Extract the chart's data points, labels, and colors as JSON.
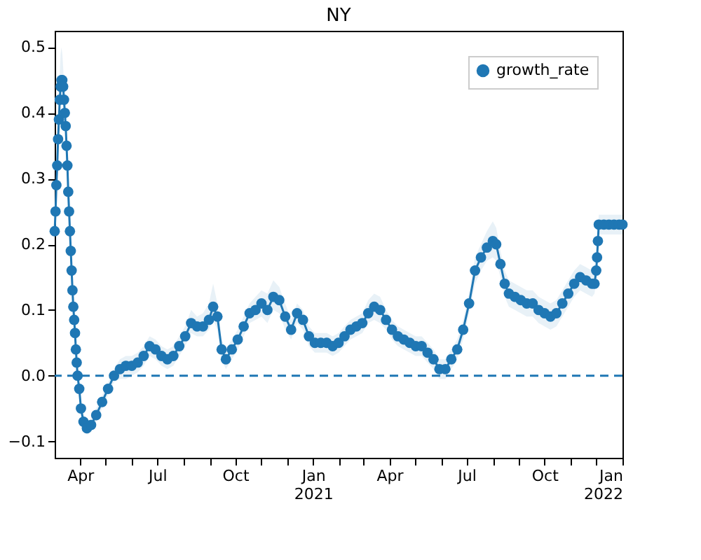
{
  "chart_data": {
    "type": "line",
    "title": "NY",
    "x": [
      "2020-03-02",
      "2020-03-03",
      "2020-03-04",
      "2020-03-05",
      "2020-03-06",
      "2020-03-07",
      "2020-03-08",
      "2020-03-09",
      "2020-03-10",
      "2020-03-11",
      "2020-03-12",
      "2020-03-13",
      "2020-03-14",
      "2020-03-15",
      "2020-03-16",
      "2020-03-17",
      "2020-03-18",
      "2020-03-19",
      "2020-03-20",
      "2020-03-21",
      "2020-03-22",
      "2020-03-23",
      "2020-03-24",
      "2020-03-25",
      "2020-03-26",
      "2020-03-27",
      "2020-03-28",
      "2020-03-29",
      "2020-03-31",
      "2020-04-02",
      "2020-04-05",
      "2020-04-09",
      "2020-04-14",
      "2020-04-20",
      "2020-04-27",
      "2020-05-04",
      "2020-05-11",
      "2020-05-18",
      "2020-05-25",
      "2020-06-01",
      "2020-06-08",
      "2020-06-15",
      "2020-06-22",
      "2020-06-29",
      "2020-07-06",
      "2020-07-13",
      "2020-07-20",
      "2020-07-27",
      "2020-08-03",
      "2020-08-10",
      "2020-08-17",
      "2020-08-24",
      "2020-08-31",
      "2020-09-05",
      "2020-09-10",
      "2020-09-15",
      "2020-09-20",
      "2020-09-27",
      "2020-10-04",
      "2020-10-11",
      "2020-10-18",
      "2020-10-25",
      "2020-11-01",
      "2020-11-08",
      "2020-11-15",
      "2020-11-22",
      "2020-11-29",
      "2020-12-06",
      "2020-12-13",
      "2020-12-20",
      "2020-12-27",
      "2021-01-03",
      "2021-01-10",
      "2021-01-17",
      "2021-01-24",
      "2021-01-31",
      "2021-02-07",
      "2021-02-14",
      "2021-02-21",
      "2021-02-28",
      "2021-03-07",
      "2021-03-14",
      "2021-03-21",
      "2021-03-28",
      "2021-04-04",
      "2021-04-11",
      "2021-04-18",
      "2021-04-25",
      "2021-05-02",
      "2021-05-09",
      "2021-05-16",
      "2021-05-23",
      "2021-05-30",
      "2021-06-06",
      "2021-06-13",
      "2021-06-20",
      "2021-06-27",
      "2021-07-04",
      "2021-07-11",
      "2021-07-18",
      "2021-07-25",
      "2021-08-01",
      "2021-08-05",
      "2021-08-10",
      "2021-08-15",
      "2021-08-20",
      "2021-08-27",
      "2021-09-03",
      "2021-09-10",
      "2021-09-17",
      "2021-09-24",
      "2021-10-01",
      "2021-10-08",
      "2021-10-15",
      "2021-10-22",
      "2021-10-29",
      "2021-11-05",
      "2021-11-12",
      "2021-11-19",
      "2021-11-26",
      "2021-11-29",
      "2021-12-01",
      "2021-12-02",
      "2021-12-03",
      "2021-12-04",
      "2021-12-10",
      "2021-12-16",
      "2021-12-22",
      "2021-12-28",
      "2022-01-01"
    ],
    "series": [
      {
        "name": "growth_rate",
        "color": "#1f77b4",
        "values": [
          0.22,
          0.25,
          0.29,
          0.32,
          0.36,
          0.39,
          0.42,
          0.44,
          0.45,
          0.45,
          0.44,
          0.42,
          0.4,
          0.38,
          0.35,
          0.32,
          0.28,
          0.25,
          0.22,
          0.19,
          0.16,
          0.13,
          0.105,
          0.085,
          0.065,
          0.04,
          0.02,
          0.0,
          -0.02,
          -0.05,
          -0.07,
          -0.08,
          -0.075,
          -0.06,
          -0.04,
          -0.02,
          0.0,
          0.01,
          0.015,
          0.015,
          0.02,
          0.03,
          0.045,
          0.04,
          0.03,
          0.025,
          0.03,
          0.045,
          0.06,
          0.08,
          0.075,
          0.075,
          0.085,
          0.105,
          0.09,
          0.04,
          0.025,
          0.04,
          0.055,
          0.075,
          0.095,
          0.1,
          0.11,
          0.1,
          0.12,
          0.115,
          0.09,
          0.07,
          0.095,
          0.085,
          0.06,
          0.05,
          0.05,
          0.05,
          0.045,
          0.05,
          0.06,
          0.07,
          0.075,
          0.08,
          0.095,
          0.105,
          0.1,
          0.085,
          0.07,
          0.06,
          0.055,
          0.05,
          0.045,
          0.045,
          0.035,
          0.025,
          0.01,
          0.01,
          0.025,
          0.04,
          0.07,
          0.11,
          0.16,
          0.18,
          0.195,
          0.205,
          0.2,
          0.17,
          0.14,
          0.125,
          0.12,
          0.115,
          0.11,
          0.11,
          0.1,
          0.095,
          0.09,
          0.095,
          0.11,
          0.125,
          0.14,
          0.15,
          0.145,
          0.14,
          0.14,
          0.16,
          0.18,
          0.205,
          0.23,
          0.23,
          0.23,
          0.23,
          0.23,
          0.23
        ],
        "lower": [
          0.2,
          0.23,
          0.27,
          0.3,
          0.34,
          0.37,
          0.4,
          0.42,
          0.43,
          0.43,
          0.42,
          0.4,
          0.38,
          0.36,
          0.33,
          0.3,
          0.26,
          0.23,
          0.2,
          0.17,
          0.14,
          0.11,
          0.09,
          0.07,
          0.05,
          0.03,
          0.01,
          -0.01,
          -0.03,
          -0.06,
          -0.08,
          -0.09,
          -0.085,
          -0.07,
          -0.05,
          -0.03,
          -0.01,
          -0.005,
          -0.005,
          0.0,
          0.005,
          0.015,
          0.03,
          0.025,
          0.015,
          0.01,
          0.015,
          0.03,
          0.045,
          0.065,
          0.06,
          0.06,
          0.07,
          0.085,
          0.07,
          0.025,
          0.01,
          0.025,
          0.04,
          0.06,
          0.08,
          0.085,
          0.09,
          0.08,
          0.1,
          0.095,
          0.07,
          0.055,
          0.08,
          0.07,
          0.045,
          0.035,
          0.035,
          0.035,
          0.03,
          0.035,
          0.045,
          0.055,
          0.06,
          0.065,
          0.08,
          0.085,
          0.08,
          0.07,
          0.055,
          0.045,
          0.04,
          0.035,
          0.03,
          0.03,
          0.02,
          0.01,
          -0.005,
          -0.005,
          0.01,
          0.025,
          0.055,
          0.095,
          0.14,
          0.16,
          0.175,
          0.18,
          0.175,
          0.15,
          0.12,
          0.105,
          0.1,
          0.095,
          0.09,
          0.09,
          0.08,
          0.075,
          0.07,
          0.075,
          0.09,
          0.105,
          0.12,
          0.13,
          0.125,
          0.12,
          0.125,
          0.145,
          0.165,
          0.19,
          0.215,
          0.215,
          0.215,
          0.215,
          0.215,
          0.215
        ],
        "upper": [
          0.24,
          0.27,
          0.31,
          0.35,
          0.39,
          0.43,
          0.46,
          0.49,
          0.5,
          0.49,
          0.47,
          0.44,
          0.42,
          0.4,
          0.37,
          0.34,
          0.3,
          0.27,
          0.24,
          0.21,
          0.18,
          0.15,
          0.12,
          0.1,
          0.08,
          0.05,
          0.03,
          0.01,
          -0.01,
          -0.04,
          -0.06,
          -0.07,
          -0.065,
          -0.05,
          -0.03,
          -0.01,
          0.01,
          0.025,
          0.03,
          0.03,
          0.035,
          0.045,
          0.06,
          0.055,
          0.045,
          0.04,
          0.045,
          0.06,
          0.075,
          0.1,
          0.09,
          0.095,
          0.11,
          0.14,
          0.11,
          0.055,
          0.04,
          0.055,
          0.07,
          0.09,
          0.11,
          0.12,
          0.13,
          0.125,
          0.145,
          0.135,
          0.11,
          0.085,
          0.11,
          0.1,
          0.075,
          0.065,
          0.065,
          0.065,
          0.06,
          0.065,
          0.075,
          0.085,
          0.09,
          0.095,
          0.115,
          0.125,
          0.12,
          0.1,
          0.085,
          0.075,
          0.07,
          0.065,
          0.06,
          0.06,
          0.05,
          0.04,
          0.025,
          0.025,
          0.04,
          0.055,
          0.085,
          0.125,
          0.18,
          0.2,
          0.22,
          0.235,
          0.225,
          0.19,
          0.16,
          0.145,
          0.14,
          0.135,
          0.13,
          0.13,
          0.12,
          0.115,
          0.11,
          0.115,
          0.13,
          0.145,
          0.16,
          0.17,
          0.165,
          0.16,
          0.155,
          0.175,
          0.195,
          0.22,
          0.245,
          0.245,
          0.245,
          0.245,
          0.245,
          0.245
        ]
      }
    ],
    "xlim": [
      "2020-03-02",
      "2022-01-01"
    ],
    "xticks": [
      {
        "value": "2020-04-01",
        "label": "Apr"
      },
      {
        "value": "2020-05-01",
        "label": null
      },
      {
        "value": "2020-06-01",
        "label": null
      },
      {
        "value": "2020-07-01",
        "label": "Jul"
      },
      {
        "value": "2020-08-01",
        "label": null
      },
      {
        "value": "2020-09-01",
        "label": null
      },
      {
        "value": "2020-10-01",
        "label": "Oct"
      },
      {
        "value": "2020-11-01",
        "label": null
      },
      {
        "value": "2020-12-01",
        "label": null
      },
      {
        "value": "2021-01-01",
        "label": "Jan\n2021"
      },
      {
        "value": "2021-02-01",
        "label": null
      },
      {
        "value": "2021-03-01",
        "label": null
      },
      {
        "value": "2021-04-01",
        "label": "Apr"
      },
      {
        "value": "2021-05-01",
        "label": null
      },
      {
        "value": "2021-06-01",
        "label": null
      },
      {
        "value": "2021-07-01",
        "label": "Jul"
      },
      {
        "value": "2021-08-01",
        "label": null
      },
      {
        "value": "2021-09-01",
        "label": null
      },
      {
        "value": "2021-10-01",
        "label": "Oct"
      },
      {
        "value": "2021-11-01",
        "label": null
      },
      {
        "value": "2021-12-01",
        "label": null
      },
      {
        "value": "2022-01-01",
        "label": "Jan\n2022"
      }
    ],
    "ylim": [
      -0.125,
      0.525
    ],
    "yticks": [
      {
        "value": -0.1,
        "label": "−0.1"
      },
      {
        "value": 0.0,
        "label": "0.0"
      },
      {
        "value": 0.1,
        "label": "0.1"
      },
      {
        "value": 0.2,
        "label": "0.2"
      },
      {
        "value": 0.3,
        "label": "0.3"
      },
      {
        "value": 0.4,
        "label": "0.4"
      },
      {
        "value": 0.5,
        "label": "0.5"
      }
    ],
    "ref_lines": [
      {
        "axis": "y",
        "value": 0,
        "color": "#1f77b4",
        "line_style": "dashed"
      }
    ],
    "legend": "top right",
    "marker": "circle",
    "line_style": "solid",
    "grid": false
  }
}
